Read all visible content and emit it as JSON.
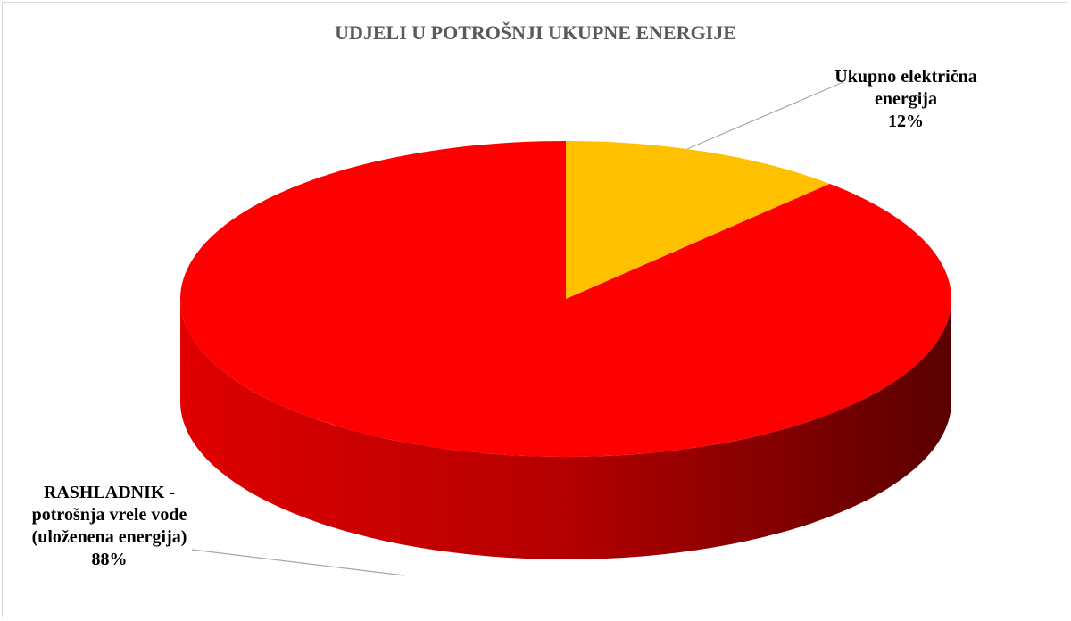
{
  "chart_data": {
    "type": "pie",
    "title": "UDJELI U POTROŠNJI UKUPNE ENERGIJE",
    "categories": [
      "Ukupno električna energija",
      "RASHLADNIK - potrošnja vrele vode (uloženena energija)"
    ],
    "values": [
      12,
      88
    ],
    "value_labels": [
      "12%",
      "88%"
    ],
    "colors": [
      "#ffc000",
      "#ff0000"
    ]
  }
}
